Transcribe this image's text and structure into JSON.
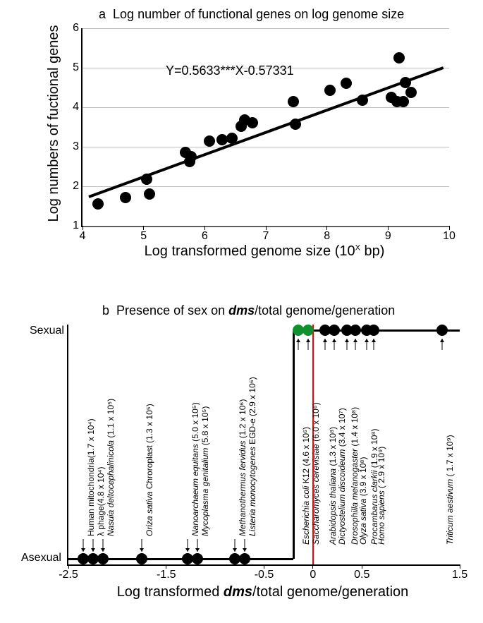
{
  "panel_a": {
    "type": "scatter-with-regression",
    "letter": "a",
    "title": "Log number of functional genes on log genome size",
    "xlabel_prefix": "Log transformed genome size (10",
    "xlabel_sup": "X",
    "xlabel_suffix": " bp)",
    "ylabel": "Log numbers of fuctional genes",
    "equation": "Y=0.5633***X-0.57331",
    "xlim": [
      4,
      10
    ],
    "ylim": [
      1,
      6
    ],
    "xticks": [
      4,
      5,
      6,
      7,
      8,
      9,
      10
    ],
    "yticks": [
      1,
      2,
      3,
      4,
      5,
      6
    ],
    "grid_color": "#bfbfbf",
    "point_color": "#000000",
    "point_size": 16,
    "line_color": "#000000",
    "line_width": 4,
    "reg_slope": 0.5633,
    "reg_intercept": -0.57331,
    "background_color": "#ffffff",
    "points": [
      {
        "x": 4.25,
        "y": 1.55
      },
      {
        "x": 4.7,
        "y": 1.72
      },
      {
        "x": 5.05,
        "y": 2.18
      },
      {
        "x": 5.1,
        "y": 1.8
      },
      {
        "x": 5.68,
        "y": 2.85
      },
      {
        "x": 5.75,
        "y": 2.62
      },
      {
        "x": 5.78,
        "y": 2.75
      },
      {
        "x": 6.08,
        "y": 3.15
      },
      {
        "x": 6.28,
        "y": 3.18
      },
      {
        "x": 6.45,
        "y": 3.22
      },
      {
        "x": 6.6,
        "y": 3.52
      },
      {
        "x": 6.65,
        "y": 3.68
      },
      {
        "x": 6.78,
        "y": 3.6
      },
      {
        "x": 7.45,
        "y": 4.15
      },
      {
        "x": 7.48,
        "y": 3.58
      },
      {
        "x": 8.05,
        "y": 4.43
      },
      {
        "x": 8.32,
        "y": 4.6
      },
      {
        "x": 8.58,
        "y": 4.18
      },
      {
        "x": 9.05,
        "y": 4.25
      },
      {
        "x": 9.15,
        "y": 4.15
      },
      {
        "x": 9.18,
        "y": 5.25
      },
      {
        "x": 9.25,
        "y": 4.15
      },
      {
        "x": 9.28,
        "y": 4.62
      },
      {
        "x": 9.38,
        "y": 4.38
      }
    ]
  },
  "panel_b": {
    "type": "step-binary",
    "letter": "b",
    "title_prefix": "Presence of sex on ",
    "title_dms": "dms",
    "title_suffix": "/total genome/generation",
    "xlabel_prefix": "Log transformed ",
    "xlabel_dms": "dms",
    "xlabel_suffix": "/total genome/generation",
    "y_top_label": "Sexual",
    "y_bottom_label": "Asexual",
    "xlim": [
      -2.5,
      1.5
    ],
    "xticks": [
      -2.5,
      -1.5,
      -0.5,
      0,
      0.5,
      1.5
    ],
    "step_x": -0.2,
    "red_x": 0,
    "step_color": "#000000",
    "red_color": "#ff0000",
    "point_color": "#000000",
    "green_color": "#0f8f2f",
    "point_size": 16,
    "background_color": "#ffffff",
    "asexual_points": [
      {
        "x": -2.35,
        "name": "Human mitochondria",
        "size": "(1.7 x 10⁴)",
        "italic": false
      },
      {
        "x": -2.25,
        "name": "λ phage",
        "size": "(4.8 x 10⁴)",
        "italic": false
      },
      {
        "x": -2.15,
        "name": "Nasuia deltocephalinicola",
        "size": "(1.1 x 10⁵)",
        "italic": true
      },
      {
        "x": -1.75,
        "name": "Oriza sativa Chroroplast",
        "size": "(1.3 x 10⁵)",
        "italic_name": "Oriza sativa",
        "italic": true
      },
      {
        "x": -1.28,
        "name": "Nanoarchaeum equitans",
        "size": "(5.0 x 10⁵)",
        "italic": true
      },
      {
        "x": -1.18,
        "name": "Mycoplasma genitalium",
        "size": "(5.8 x 10⁵)",
        "italic": true
      },
      {
        "x": -0.8,
        "name": "Methanothermus fervidus",
        "size": "(1.2 x 10⁶)",
        "italic": true
      },
      {
        "x": -0.7,
        "name": "Listeria monocytogenes EGD-e",
        "size": "(2.9 x 10⁶)",
        "italic_name": "Listeria monocytogenes",
        "italic": true
      }
    ],
    "sexual_points": [
      {
        "x": -0.15,
        "name": "Escherichia coli K12",
        "size": "(4.6 x 10⁶)",
        "italic_name": "Escherichia coli",
        "italic": true,
        "color": "green"
      },
      {
        "x": -0.05,
        "name": "Saccharomyces cerevisiae",
        "size": "(6.0 x 10⁶)",
        "italic": true,
        "color": "green"
      },
      {
        "x": 0.12,
        "name": "Arabidopsis thaliana",
        "size": "(1.3 x 10⁸)",
        "italic": true,
        "color": "black"
      },
      {
        "x": 0.22,
        "name": "Dictyostelium discoideum",
        "size": "(3.4 x 10⁷)",
        "italic": true,
        "color": "black"
      },
      {
        "x": 0.35,
        "name": "Drosophilla melanogaster",
        "size": "(1.4 x 10⁸)",
        "italic": true,
        "color": "black"
      },
      {
        "x": 0.43,
        "name": "Olyza sativa",
        "size": "(3.9 x 10⁸)",
        "italic": true,
        "color": "black"
      },
      {
        "x": 0.55,
        "name": "Procambarus clarkii",
        "size": "(1.9 x 10⁸)",
        "italic": true,
        "color": "black"
      },
      {
        "x": 0.62,
        "name": "Homo sapiens",
        "size": "( 2.9 x 10⁹)",
        "italic": true,
        "color": "black"
      },
      {
        "x": 1.32,
        "name": "Triticum aestivum",
        "size": "( 1.7 x 10⁹)",
        "italic": true,
        "color": "black"
      }
    ]
  }
}
